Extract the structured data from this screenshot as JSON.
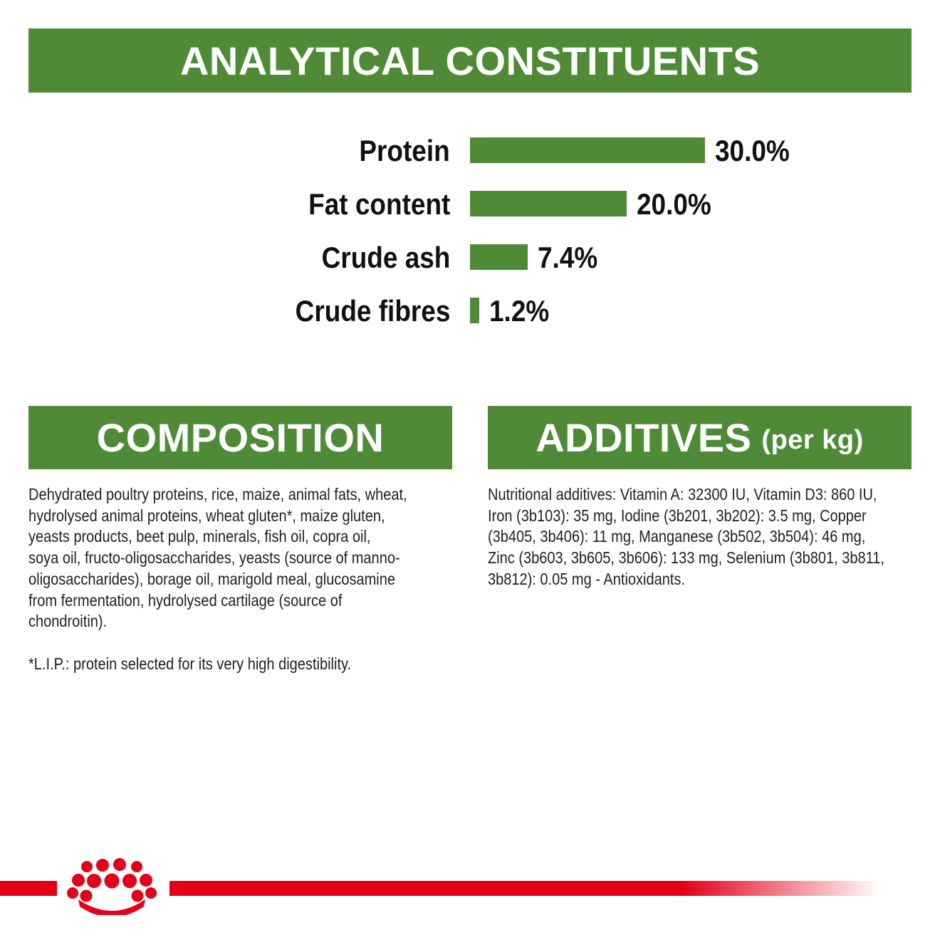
{
  "analytical": {
    "title": "ANALYTICAL CONSTITUENTS",
    "rows": [
      {
        "label": "Protein",
        "value": "30.0%",
        "percent": 30.0
      },
      {
        "label": "Fat content",
        "value": "20.0%",
        "percent": 20.0
      },
      {
        "label": "Crude ash",
        "value": "7.4%",
        "percent": 7.4
      },
      {
        "label": "Crude fibres",
        "value": "1.2%",
        "percent": 1.2
      }
    ]
  },
  "composition": {
    "title": "COMPOSITION",
    "text": "Dehydrated poultry proteins, rice, maize, animal fats, wheat,\nhydrolysed animal proteins, wheat gluten*, maize gluten,\nyeasts products, beet pulp, minerals, fish oil, copra oil,\nsoya oil, fructo-oligosaccharides, yeasts (source of manno-\noligosaccharides), borage oil, marigold meal, glucosamine\nfrom fermentation, hydrolysed cartilage (source of\nchondroitin).",
    "note": "*L.I.P.: protein selected for its very high digestibility."
  },
  "additives": {
    "title": "ADDITIVES",
    "title_suffix": "(per kg)",
    "text": "Nutritional additives: Vitamin A: 32300 IU, Vitamin D3: 860 IU,\nIron (3b103): 35 mg, Iodine (3b201, 3b202): 3.5 mg, Copper\n(3b405, 3b406): 11 mg, Manganese (3b502, 3b504): 46 mg,\nZinc (3b603, 3b605, 3b606): 133 mg, Selenium (3b801, 3b811,\n3b812): 0.05 mg - Antioxidants."
  },
  "colors": {
    "accent_green": "#4f8a36",
    "brand_red": "#e2001a"
  },
  "icons": {
    "brand_logo": "royal-canin-crown-icon"
  }
}
